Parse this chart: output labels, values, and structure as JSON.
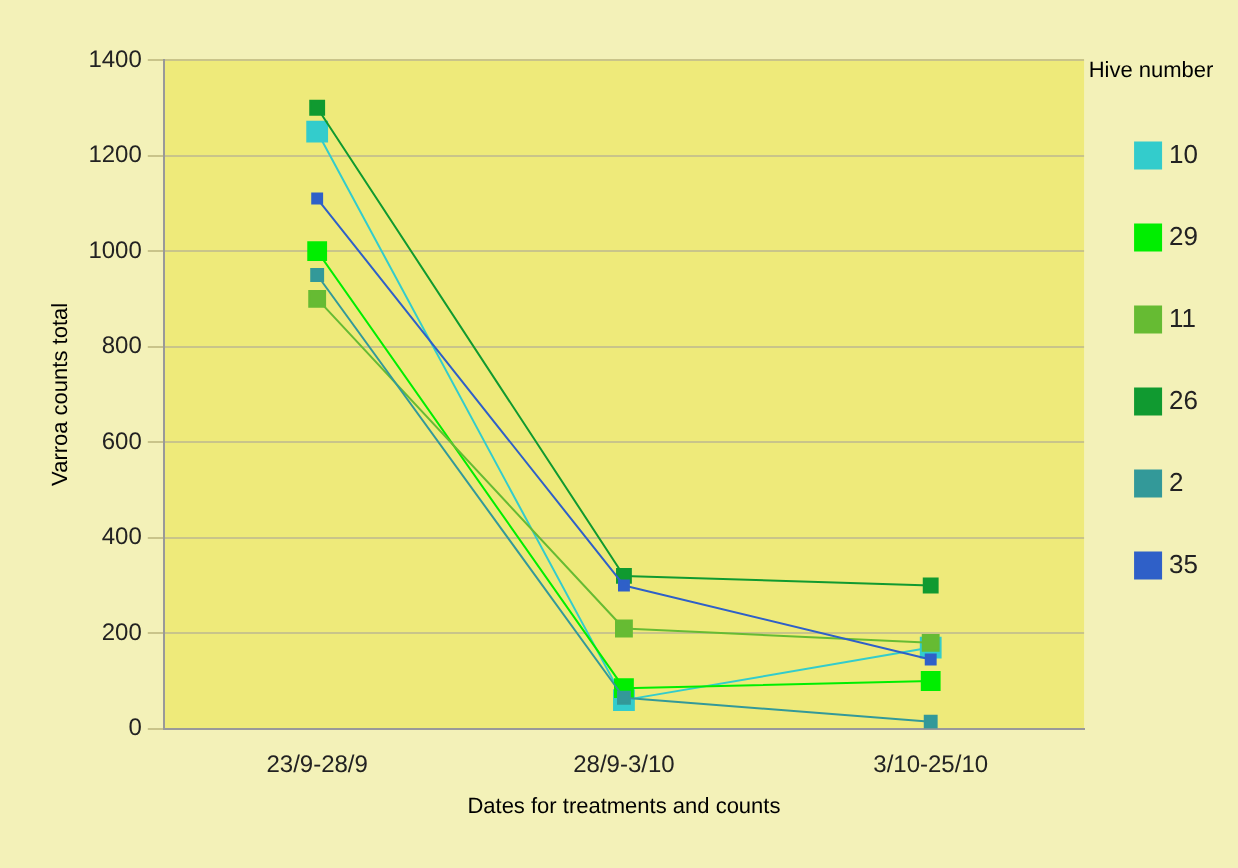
{
  "chart_data": {
    "type": "line",
    "xlabel": "Dates for treatments and counts",
    "ylabel": "Varroa counts total",
    "legend_title": "Hive number",
    "categories": [
      "23/9-28/9",
      "28/9-3/10",
      "3/10-25/10"
    ],
    "series": [
      {
        "name": "10",
        "color": "#33cccc",
        "values": [
          1250,
          60,
          170
        ]
      },
      {
        "name": "29",
        "color": "#00ee00",
        "values": [
          1000,
          85,
          100
        ]
      },
      {
        "name": "11",
        "color": "#66bb33",
        "values": [
          900,
          210,
          180
        ]
      },
      {
        "name": "26",
        "color": "#109a30",
        "values": [
          1300,
          320,
          300
        ]
      },
      {
        "name": "2",
        "color": "#339999",
        "values": [
          950,
          65,
          15
        ]
      },
      {
        "name": "35",
        "color": "#2f60c8",
        "values": [
          1110,
          300,
          145
        ]
      }
    ],
    "ylim": [
      0,
      1400
    ],
    "yticks": [
      0,
      200,
      400,
      600,
      800,
      1000,
      1200,
      1400
    ],
    "grid": "y",
    "legend": "right",
    "marker": "square",
    "line_style": "solid"
  }
}
